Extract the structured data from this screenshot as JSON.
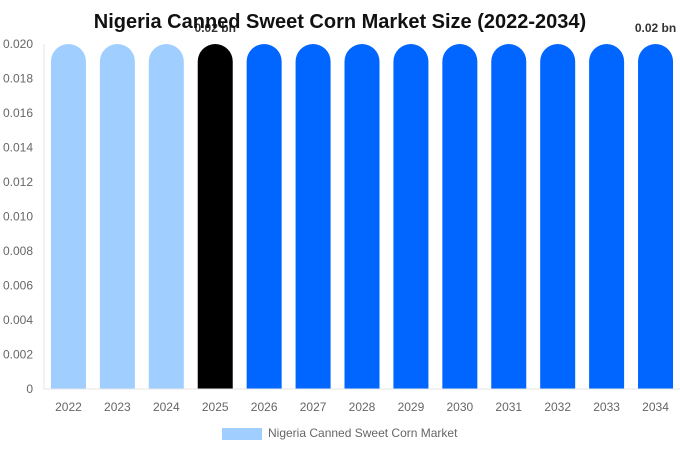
{
  "chart_data": {
    "type": "bar",
    "title": "Nigeria Canned Sweet Corn Market Size (2022-2034)",
    "xlabel": "",
    "ylabel": "",
    "categories": [
      "2022",
      "2023",
      "2024",
      "2025",
      "2026",
      "2027",
      "2028",
      "2029",
      "2030",
      "2031",
      "2032",
      "2033",
      "2034"
    ],
    "series": [
      {
        "name": "Nigeria Canned Sweet Corn Market",
        "values": [
          0.02,
          0.02,
          0.02,
          0.02,
          0.02,
          0.02,
          0.02,
          0.02,
          0.02,
          0.02,
          0.02,
          0.02,
          0.02
        ]
      }
    ],
    "ylim": [
      0,
      0.02
    ],
    "yticks": [
      "0",
      "0.002",
      "0.004",
      "0.006",
      "0.008",
      "0.010",
      "0.012",
      "0.014",
      "0.016",
      "0.018",
      "0.020"
    ],
    "data_labels": [
      {
        "category": "2025",
        "text": "0.02 bn"
      },
      {
        "category": "2034",
        "text": "0.02 bn"
      }
    ],
    "bar_colors": {
      "historical": "#a0cfff",
      "current": "#000000",
      "forecast": "#0066ff"
    },
    "bar_color_groups": [
      "historical",
      "historical",
      "historical",
      "current",
      "forecast",
      "forecast",
      "forecast",
      "forecast",
      "forecast",
      "forecast",
      "forecast",
      "forecast",
      "forecast"
    ],
    "legend_position": "bottom",
    "grid": false
  }
}
